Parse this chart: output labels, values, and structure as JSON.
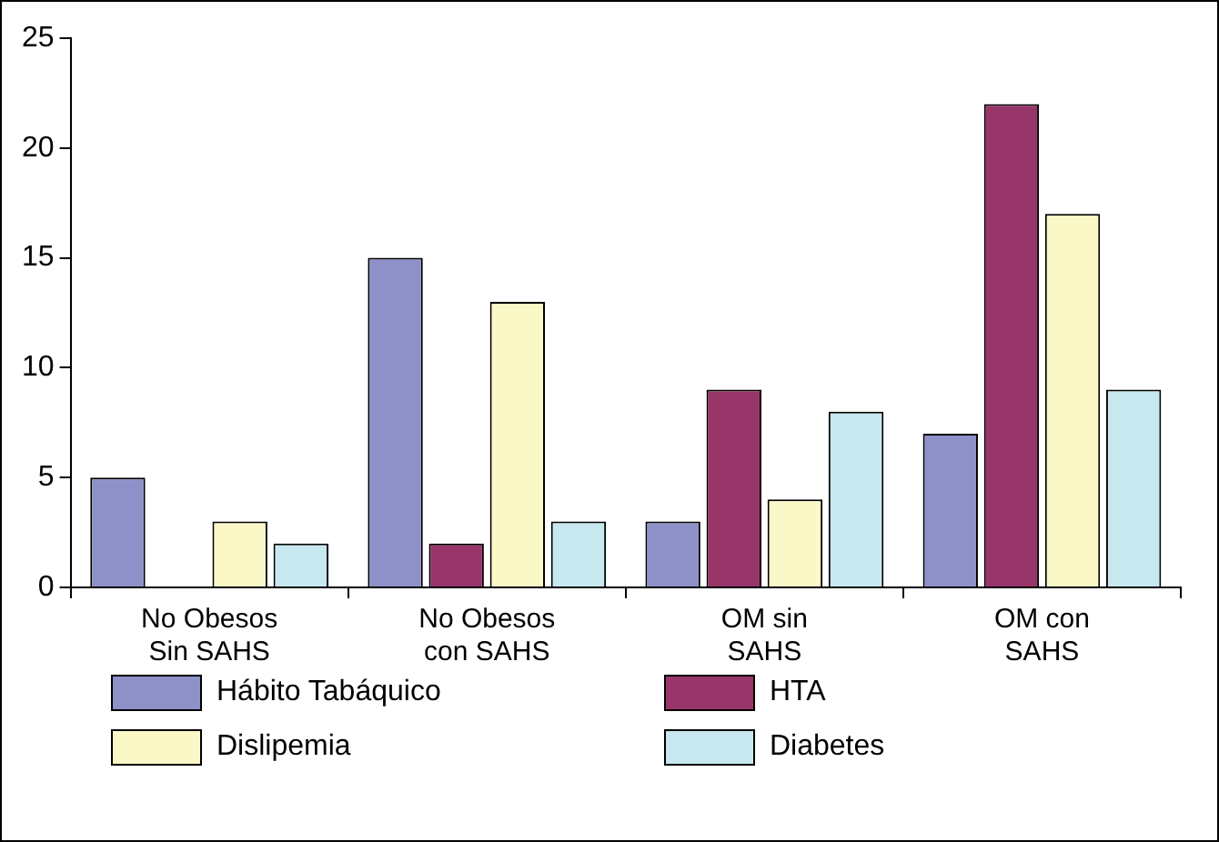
{
  "chart_data": {
    "type": "bar",
    "categories": [
      "No Obesos Sin SAHS",
      "No Obesos con SAHS",
      "OM sin SAHS",
      "OM con SAHS"
    ],
    "series": [
      {
        "name": "Hábito Tabáquico",
        "color": "#8e90c8",
        "values": [
          5,
          15,
          3,
          7
        ]
      },
      {
        "name": "HTA",
        "color": "#98366a",
        "values": [
          0,
          2,
          9,
          22
        ]
      },
      {
        "name": "Dislipemia",
        "color": "#fbf8c8",
        "values": [
          3,
          13,
          4,
          17
        ]
      },
      {
        "name": "Diabetes",
        "color": "#c6e8ee",
        "values": [
          2,
          3,
          8,
          9
        ]
      }
    ],
    "ylim": [
      0,
      25
    ],
    "yticks": [
      0,
      5,
      10,
      15,
      20,
      25
    ],
    "grid": false,
    "legend": "bottom"
  }
}
